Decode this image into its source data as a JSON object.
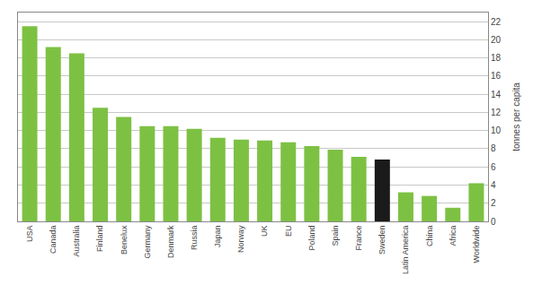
{
  "chart_data": {
    "type": "bar",
    "categories": [
      "USA",
      "Canada",
      "Australia",
      "Finland",
      "Benelux",
      "Germany",
      "Denmark",
      "Russia",
      "Japan",
      "Norway",
      "UK",
      "EU",
      "Poland",
      "Spain",
      "France",
      "Sweden",
      "Latin America",
      "China",
      "Africa",
      "Worldwide"
    ],
    "values": [
      21.5,
      19.2,
      18.5,
      12.5,
      11.5,
      10.5,
      10.5,
      10.2,
      9.2,
      9.0,
      8.9,
      8.7,
      8.3,
      7.9,
      7.1,
      6.8,
      3.2,
      2.8,
      1.5,
      4.2
    ],
    "colors": [
      "#7dc143",
      "#7dc143",
      "#7dc143",
      "#7dc143",
      "#7dc143",
      "#7dc143",
      "#7dc143",
      "#7dc143",
      "#7dc143",
      "#7dc143",
      "#7dc143",
      "#7dc143",
      "#7dc143",
      "#7dc143",
      "#7dc143",
      "#1a1a1a",
      "#7dc143",
      "#7dc143",
      "#7dc143",
      "#7dc143"
    ],
    "ylabel": "tonnes per capita",
    "ylim": [
      0,
      23
    ],
    "yticks": [
      0,
      2,
      4,
      6,
      8,
      10,
      12,
      14,
      16,
      18,
      20,
      22
    ],
    "grid": true
  }
}
